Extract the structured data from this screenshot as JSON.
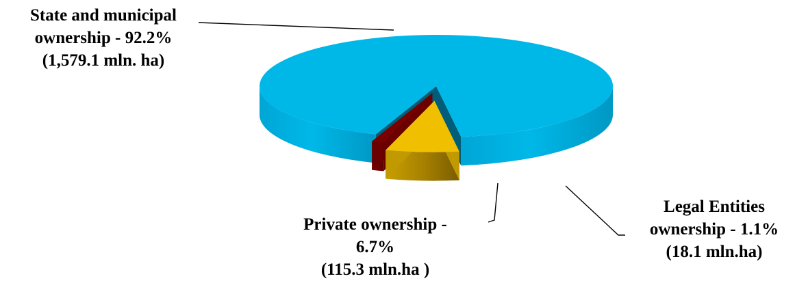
{
  "chart_data": {
    "type": "pie",
    "style": "3d-exploded",
    "slices": [
      {
        "name": "State and municipal ownership",
        "percent": 92.2,
        "area_mln_ha": 1579.1,
        "color": "#00B8E8",
        "label_lines": [
          "State and municipal",
          "ownership  - 92.2%",
          "(1,579.1 mln. ha)"
        ]
      },
      {
        "name": "Private ownership",
        "percent": 6.7,
        "area_mln_ha": 115.3,
        "color": "#F0C000",
        "label_lines": [
          "Private ownership -",
          "6.7%",
          "(115.3 mln.ha )"
        ]
      },
      {
        "name": "Legal Entities ownership",
        "percent": 1.1,
        "area_mln_ha": 18.1,
        "color": "#7A0000",
        "label_lines": [
          "Legal Entities",
          "ownership -  1.1%",
          "(18.1 mln.ha)"
        ]
      }
    ]
  }
}
